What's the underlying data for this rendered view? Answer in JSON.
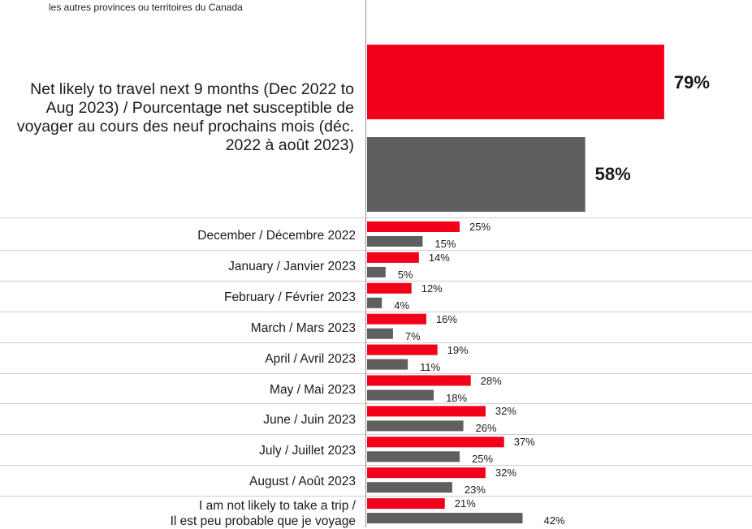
{
  "header": {
    "note": "les autres provinces ou territoires du Canada"
  },
  "colors": {
    "series_a": "#f20019",
    "series_b": "#5f5f5f",
    "divider": "#cfcfcf",
    "axis": "#8c8c8c"
  },
  "chart_data": {
    "type": "bar",
    "orientation": "horizontal",
    "grid": false,
    "legend": "none",
    "xlim": [
      0,
      100
    ],
    "summary": {
      "category": "Net likely to travel next 9 months (Dec 2022 to Aug 2023) / Pourcentage net susceptible de voyager au cours des neuf prochains mois (déc. 2022 à août 2023)",
      "values": [
        79,
        58
      ],
      "labels": [
        "79%",
        "58%"
      ]
    },
    "categories": [
      "December / Décembre 2022",
      "January / Janvier 2023",
      "February / Février  2023",
      "March / Mars  2023",
      "April / Avril  2023",
      "May / Mai  2023",
      "June / Juin 2023",
      "July / Juillet 2023",
      "August / Août 2023",
      "I am not likely to take a trip / Il est peu probable que je voyage"
    ],
    "category_lines": [
      [
        "December / Décembre 2022"
      ],
      [
        "January / Janvier 2023"
      ],
      [
        "February / Février  2023"
      ],
      [
        "March / Mars  2023"
      ],
      [
        "April / Avril  2023"
      ],
      [
        "May / Mai  2023"
      ],
      [
        "June / Juin 2023"
      ],
      [
        "July / Juillet 2023"
      ],
      [
        "August / Août 2023"
      ],
      [
        "I am not likely to take a trip /",
        "Il est peu probable que je voyage"
      ]
    ],
    "series": [
      {
        "values": [
          25,
          14,
          12,
          16,
          19,
          28,
          32,
          37,
          32,
          21
        ],
        "labels": [
          "25%",
          "14%",
          "12%",
          "16%",
          "19%",
          "28%",
          "32%",
          "37%",
          "32%",
          "21%"
        ]
      },
      {
        "values": [
          15,
          5,
          4,
          7,
          11,
          18,
          26,
          25,
          23,
          42
        ],
        "labels": [
          "15%",
          "5%",
          "4%",
          "7%",
          "11%",
          "18%",
          "26%",
          "25%",
          "23%",
          "42%"
        ]
      }
    ]
  }
}
